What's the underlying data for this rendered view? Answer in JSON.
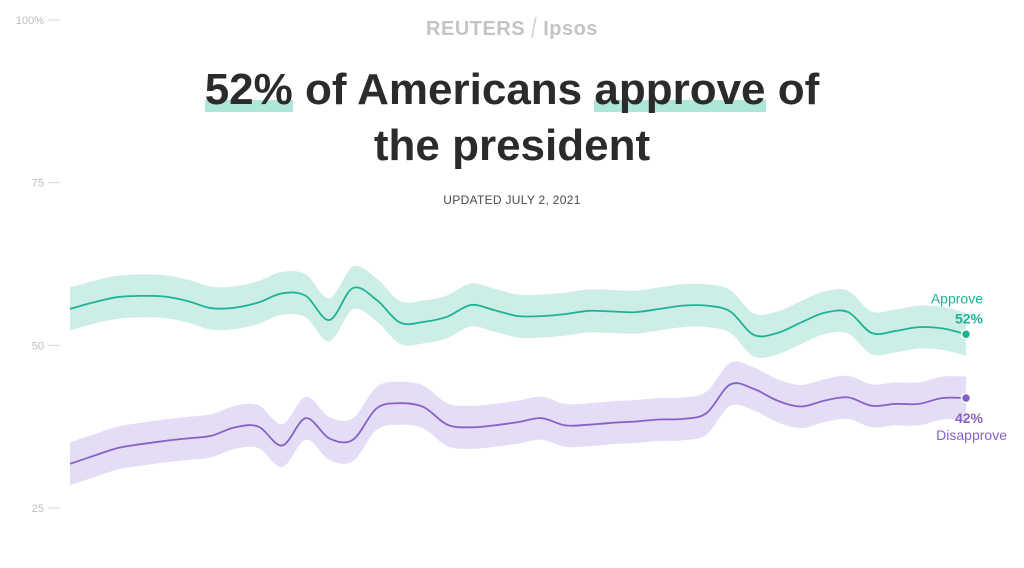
{
  "brand": {
    "left": "REUTERS",
    "separator": "/",
    "right": "Ipsos"
  },
  "headline": {
    "pct": "52%",
    "mid": " of Americans ",
    "verb": "approve",
    "tail": " of",
    "line2": "the president"
  },
  "updated": "UPDATED JULY 2, 2021",
  "colors": {
    "approve": "#1db394",
    "approve_band": "#cdeee6",
    "disapprove": "#8662c7",
    "disapprove_band": "#e4ddf5",
    "highlight": "#aee6da"
  },
  "chart_data": {
    "type": "line",
    "ylim": [
      25,
      100
    ],
    "yticks": [
      25,
      50,
      75,
      100
    ],
    "ytick_labels": [
      "25",
      "50",
      "75",
      "100%"
    ],
    "grid": false,
    "series": [
      {
        "name": "Approve",
        "end_label": "52%",
        "color": "#1db394",
        "band_width": 3.3,
        "values": [
          55.6,
          56.6,
          57.4,
          57.6,
          57.5,
          56.8,
          55.7,
          55.8,
          56.6,
          58.0,
          57.6,
          53.9,
          58.8,
          57.0,
          53.5,
          53.6,
          54.4,
          56.2,
          55.4,
          54.5,
          54.5,
          54.8,
          55.3,
          55.2,
          55.1,
          55.6,
          56.1,
          56.1,
          55.2,
          51.6,
          51.9,
          53.5,
          55.0,
          55.1,
          51.9,
          52.2,
          52.8,
          52.6,
          51.7
        ]
      },
      {
        "name": "Disapprove",
        "end_label": "42%",
        "color": "#8662c7",
        "band_width": 3.3,
        "values": [
          31.8,
          33.0,
          34.2,
          34.8,
          35.3,
          35.7,
          36.1,
          37.4,
          37.5,
          34.6,
          38.8,
          35.7,
          35.5,
          40.3,
          41.1,
          40.5,
          37.8,
          37.4,
          37.7,
          38.2,
          38.8,
          37.7,
          37.8,
          38.1,
          38.3,
          38.6,
          38.7,
          39.6,
          44.0,
          43.3,
          41.5,
          40.6,
          41.5,
          42.0,
          40.7,
          41.0,
          41.0,
          41.9,
          41.9
        ]
      }
    ]
  }
}
